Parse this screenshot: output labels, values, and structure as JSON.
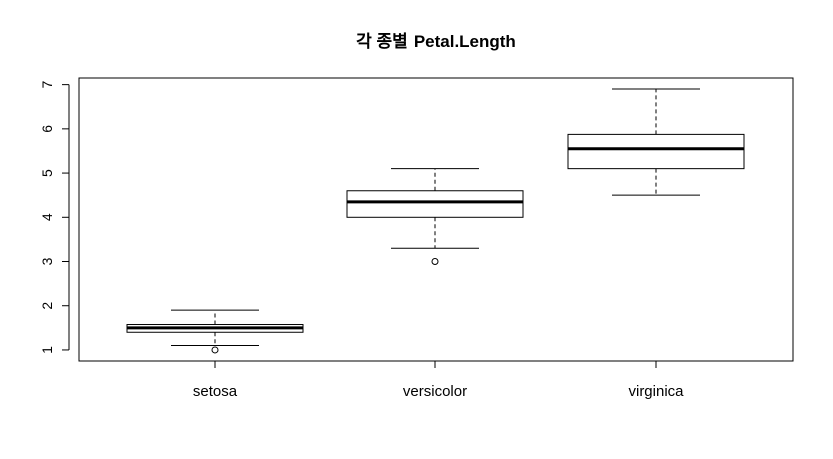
{
  "chart_data": {
    "type": "boxplot",
    "title_prefix": "각 종별",
    "title_main": "Petal.Length",
    "xlabel": "",
    "ylabel": "",
    "ylim": [
      0.75,
      7.15
    ],
    "yticks": [
      1,
      2,
      3,
      4,
      5,
      6,
      7
    ],
    "yticks_text": [
      "1",
      "2",
      "3",
      "4",
      "5",
      "6",
      "7"
    ],
    "categories": [
      "setosa",
      "versicolor",
      "virginica"
    ],
    "boxes": [
      {
        "name": "setosa",
        "whisker_low": 1.1,
        "q1": 1.4,
        "median": 1.5,
        "q3": 1.575,
        "whisker_high": 1.9,
        "outliers": [
          1.0
        ]
      },
      {
        "name": "versicolor",
        "whisker_low": 3.3,
        "q1": 4.0,
        "median": 4.35,
        "q3": 4.6,
        "whisker_high": 5.1,
        "outliers": [
          3.0
        ]
      },
      {
        "name": "virginica",
        "whisker_low": 4.5,
        "q1": 5.1,
        "median": 5.55,
        "q3": 5.875,
        "whisker_high": 6.9,
        "outliers": []
      }
    ],
    "colors": {
      "stroke": "#000000",
      "box_fill": "#ffffff",
      "background": "#ffffff"
    }
  }
}
